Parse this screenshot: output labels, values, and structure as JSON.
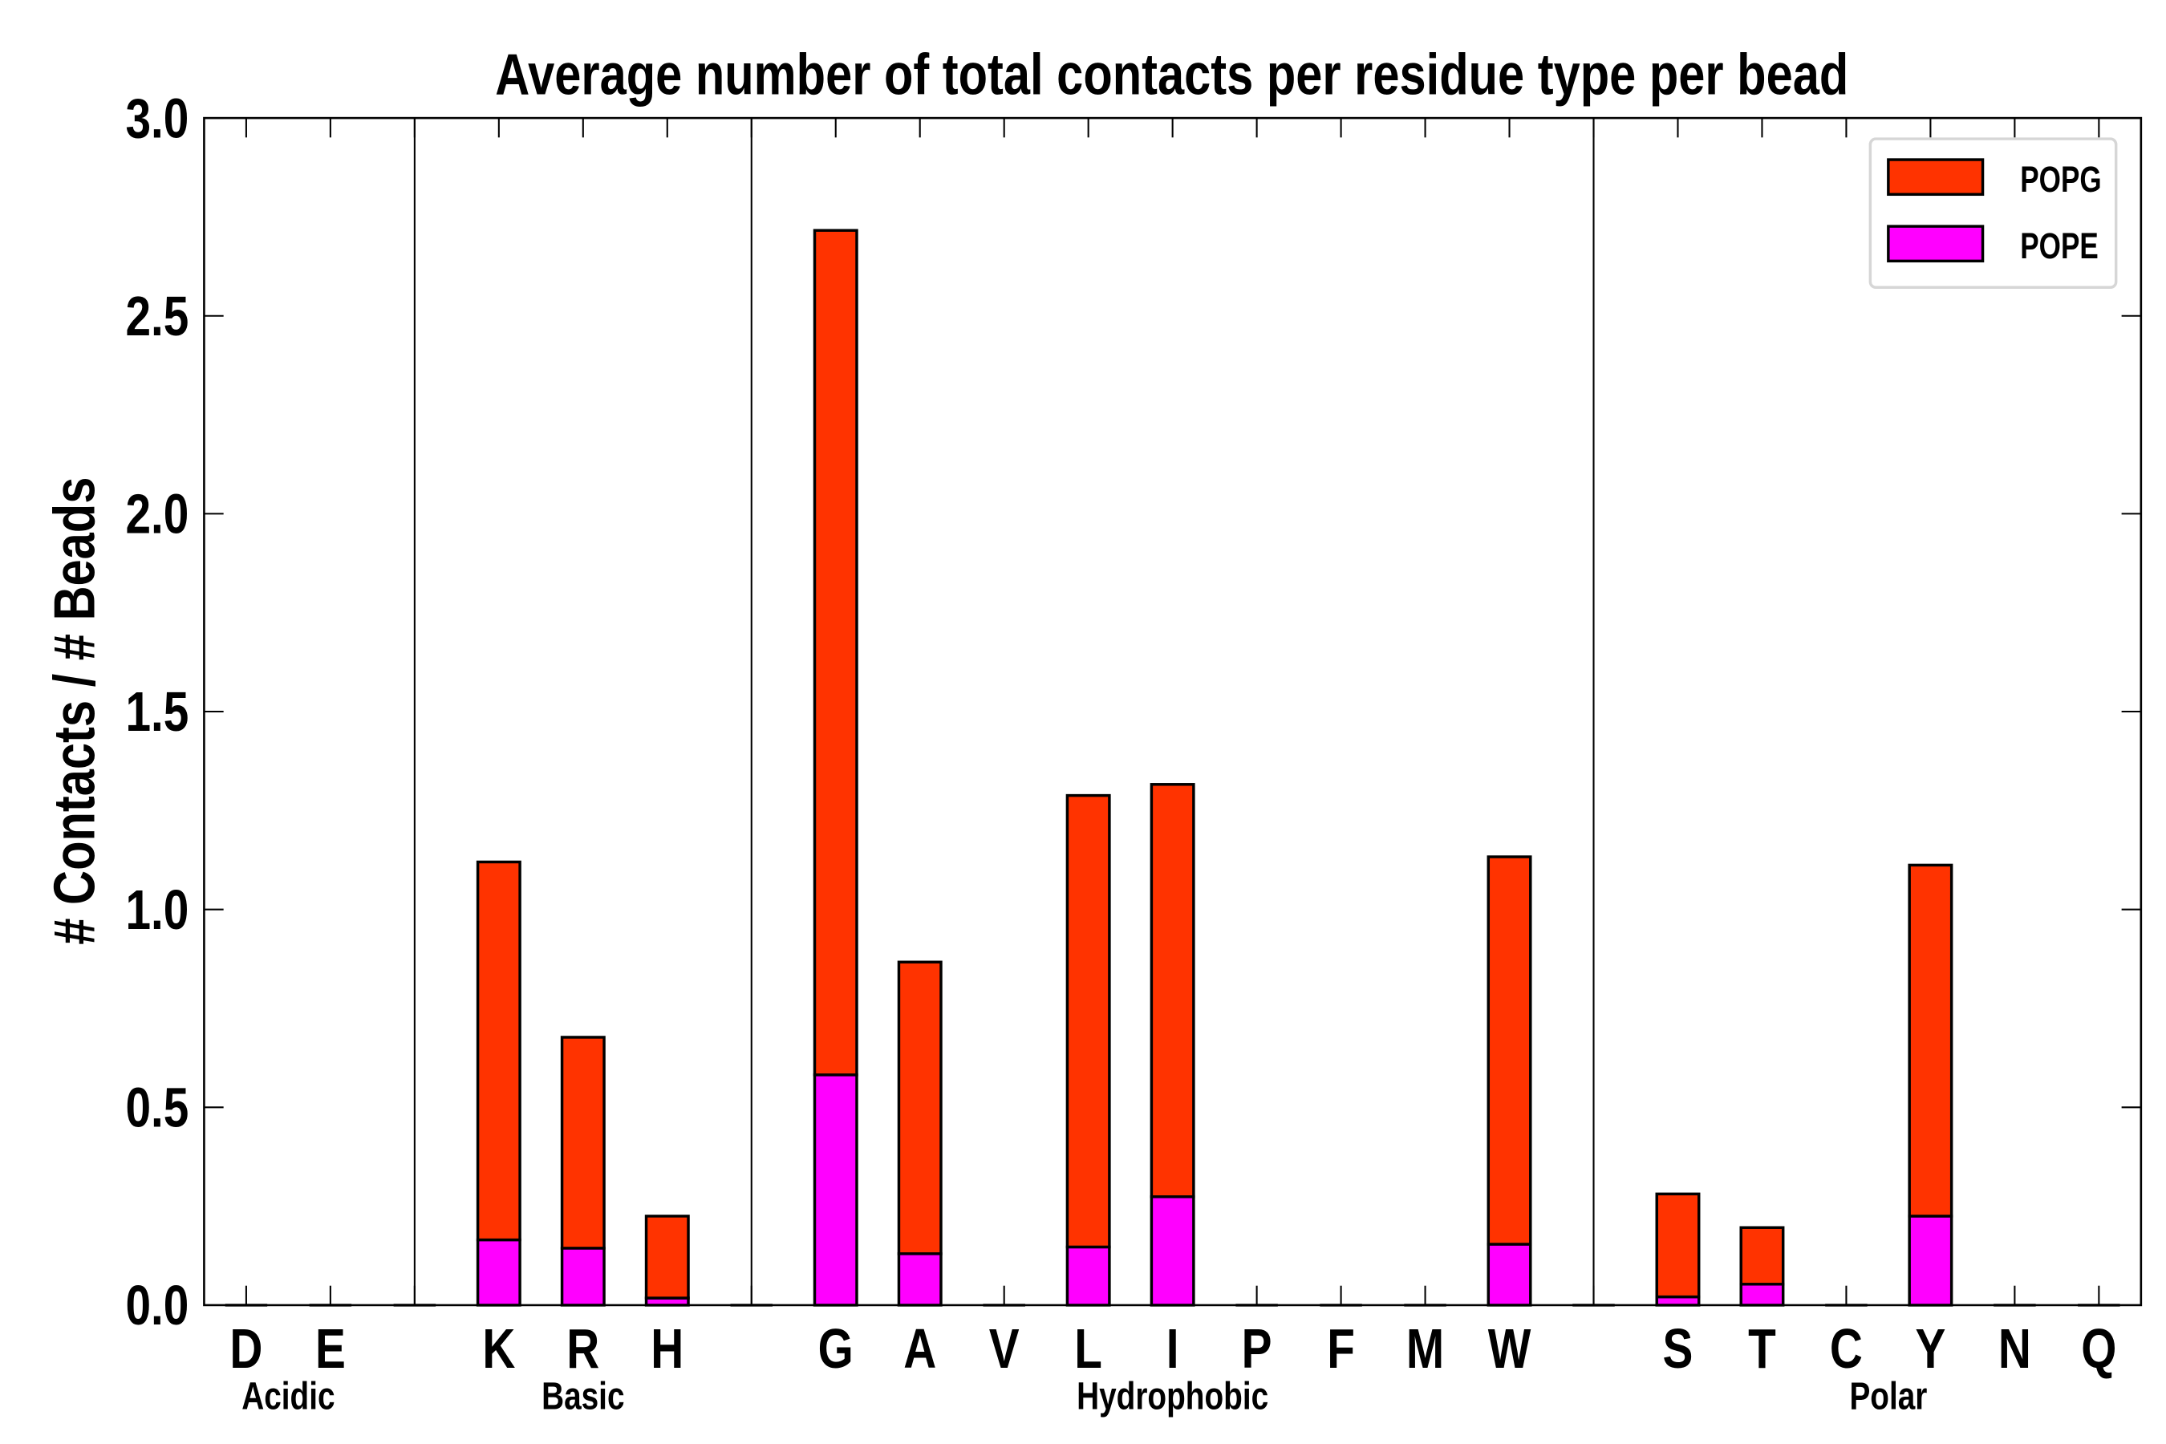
{
  "chart_data": {
    "type": "bar",
    "stacked": true,
    "title": "Average number of total contacts per residue type per bead",
    "xlabel": "",
    "ylabel": "# Contacts / # Beads",
    "ylim": [
      0,
      3.0
    ],
    "yticks": [
      "0.0",
      "0.5",
      "1.0",
      "1.5",
      "2.0",
      "2.5",
      "3.0"
    ],
    "grid": false,
    "legend_position": "top-right",
    "groups": [
      {
        "name": "Acidic",
        "categories": [
          "D",
          "E"
        ]
      },
      {
        "name": "Basic",
        "categories": [
          "K",
          "R",
          "H"
        ]
      },
      {
        "name": "Hydrophobic",
        "categories": [
          "G",
          "A",
          "V",
          "L",
          "I",
          "P",
          "F",
          "M",
          "W"
        ]
      },
      {
        "name": "Polar",
        "categories": [
          "S",
          "T",
          "C",
          "Y",
          "N",
          "Q"
        ]
      }
    ],
    "categories": [
      "D",
      "E",
      "K",
      "R",
      "H",
      "G",
      "A",
      "V",
      "L",
      "I",
      "P",
      "F",
      "M",
      "W",
      "S",
      "T",
      "C",
      "Y",
      "N",
      "Q"
    ],
    "series": [
      {
        "name": "POPE",
        "color": "#ff00ff",
        "values": [
          0,
          0,
          0.165,
          0.144,
          0.018,
          0.582,
          0.13,
          0,
          0.147,
          0.274,
          0,
          0,
          0,
          0.154,
          0.021,
          0.053,
          0,
          0.225,
          0,
          0
        ]
      },
      {
        "name": "POPG",
        "color": "#ff3300",
        "values": [
          0,
          0,
          0.955,
          0.533,
          0.207,
          2.134,
          0.737,
          0,
          1.141,
          1.042,
          0,
          0,
          0,
          0.979,
          0.26,
          0.143,
          0,
          0.887,
          0,
          0
        ]
      }
    ],
    "legend": [
      "POPG",
      "POPE"
    ]
  }
}
